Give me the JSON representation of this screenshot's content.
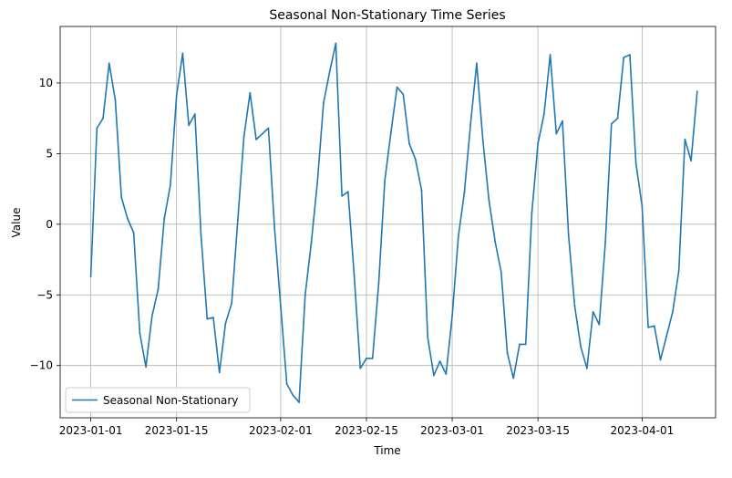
{
  "chart_data": {
    "type": "line",
    "title": "Seasonal Non-Stationary Time Series",
    "xlabel": "Time",
    "ylabel": "Value",
    "xlim": [
      "2022-12-27",
      "2023-04-13"
    ],
    "ylim": [
      -13.7,
      14.0
    ],
    "x_ticks": [
      "2023-01-01",
      "2023-01-15",
      "2023-02-01",
      "2023-02-15",
      "2023-03-01",
      "2023-03-15",
      "2023-04-01"
    ],
    "y_ticks": [
      -10,
      -5,
      0,
      5,
      10
    ],
    "grid": true,
    "legend": {
      "position": "lower left",
      "entries": [
        "Seasonal Non-Stationary"
      ]
    },
    "series": [
      {
        "name": "Seasonal Non-Stationary",
        "color": "#1f77b4",
        "x": [
          "2023-01-01",
          "2023-01-02",
          "2023-01-03",
          "2023-01-04",
          "2023-01-05",
          "2023-01-06",
          "2023-01-07",
          "2023-01-08",
          "2023-01-09",
          "2023-01-10",
          "2023-01-11",
          "2023-01-12",
          "2023-01-13",
          "2023-01-14",
          "2023-01-15",
          "2023-01-16",
          "2023-01-17",
          "2023-01-18",
          "2023-01-19",
          "2023-01-20",
          "2023-01-21",
          "2023-01-22",
          "2023-01-23",
          "2023-01-24",
          "2023-01-25",
          "2023-01-26",
          "2023-01-27",
          "2023-01-28",
          "2023-01-29",
          "2023-01-30",
          "2023-01-31",
          "2023-02-01",
          "2023-02-02",
          "2023-02-03",
          "2023-02-04",
          "2023-02-05",
          "2023-02-06",
          "2023-02-07",
          "2023-02-08",
          "2023-02-09",
          "2023-02-10",
          "2023-02-11",
          "2023-02-12",
          "2023-02-13",
          "2023-02-14",
          "2023-02-15",
          "2023-02-16",
          "2023-02-17",
          "2023-02-18",
          "2023-02-19",
          "2023-02-20",
          "2023-02-21",
          "2023-02-22",
          "2023-02-23",
          "2023-02-24",
          "2023-02-25",
          "2023-02-26",
          "2023-02-27",
          "2023-02-28",
          "2023-03-01",
          "2023-03-02",
          "2023-03-03",
          "2023-03-04",
          "2023-03-05",
          "2023-03-06",
          "2023-03-07",
          "2023-03-08",
          "2023-03-09",
          "2023-03-10",
          "2023-03-11",
          "2023-03-12",
          "2023-03-13",
          "2023-03-14",
          "2023-03-15",
          "2023-03-16",
          "2023-03-17",
          "2023-03-18",
          "2023-03-19",
          "2023-03-20",
          "2023-03-21",
          "2023-03-22",
          "2023-03-23",
          "2023-03-24",
          "2023-03-25",
          "2023-03-26",
          "2023-03-27",
          "2023-03-28",
          "2023-03-29",
          "2023-03-30",
          "2023-03-31",
          "2023-04-01",
          "2023-04-02",
          "2023-04-03",
          "2023-04-04",
          "2023-04-05",
          "2023-04-06",
          "2023-04-07",
          "2023-04-08",
          "2023-04-09",
          "2023-04-10"
        ],
        "y": [
          -3.7,
          6.8,
          7.5,
          11.4,
          8.8,
          1.9,
          0.4,
          -0.6,
          -7.7,
          -10.1,
          -6.5,
          -4.6,
          0.4,
          2.8,
          9.1,
          12.1,
          7.0,
          7.8,
          -0.8,
          -6.7,
          -6.6,
          -10.5,
          -7.0,
          -5.6,
          0.3,
          6.2,
          9.3,
          6.0,
          6.4,
          6.8,
          -0.3,
          -5.8,
          -11.3,
          -12.1,
          -12.6,
          -5.0,
          -1.3,
          3.0,
          8.6,
          10.8,
          12.8,
          2.0,
          2.3,
          -3.6,
          -10.2,
          -9.5,
          -9.5,
          -4.2,
          3.1,
          6.5,
          9.7,
          9.2,
          5.7,
          4.6,
          2.4,
          -8.0,
          -10.7,
          -9.7,
          -10.6,
          -6.5,
          -0.9,
          2.3,
          7.1,
          11.4,
          6.0,
          1.7,
          -1.2,
          -3.4,
          -9.1,
          -10.9,
          -8.5,
          -8.5,
          0.8,
          5.7,
          7.8,
          12.0,
          6.4,
          7.3,
          -0.8,
          -5.8,
          -8.7,
          -10.2,
          -6.2,
          -7.1,
          -1.3,
          7.1,
          7.5,
          11.8,
          12.0,
          4.3,
          1.3,
          -7.3,
          -7.2,
          -9.6,
          -7.9,
          -6.2,
          -3.3,
          6.0,
          4.5,
          9.4
        ]
      }
    ]
  }
}
